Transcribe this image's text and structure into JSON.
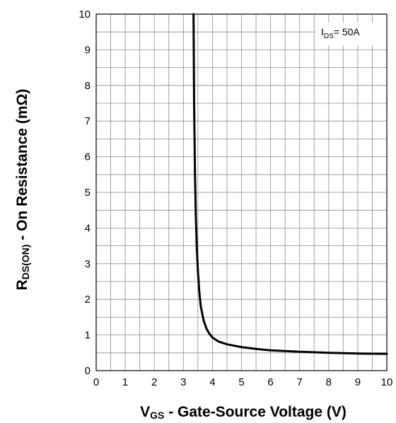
{
  "chart_data": {
    "type": "line",
    "xlabel_main": "V",
    "xlabel_sub": "GS",
    "xlabel_rest": " - Gate-Source Voltage (V)",
    "ylabel_main": "R",
    "ylabel_sub": "DS(ON)",
    "ylabel_rest": " - On Resistance (mΩ)",
    "annotation_main": "I",
    "annotation_sub": "DS",
    "annotation_rest": "= 50A",
    "xlim": [
      0,
      10
    ],
    "ylim": [
      0,
      10
    ],
    "x_ticks": [
      "0",
      "1",
      "2",
      "3",
      "4",
      "5",
      "6",
      "7",
      "8",
      "9",
      "10"
    ],
    "y_ticks": [
      "0",
      "1",
      "2",
      "3",
      "4",
      "5",
      "6",
      "7",
      "8",
      "9",
      "10"
    ],
    "grid": true,
    "series": [
      {
        "color": "#000000",
        "x": [
          3.35,
          3.37,
          3.4,
          3.43,
          3.46,
          3.5,
          3.55,
          3.6,
          3.7,
          3.8,
          3.9,
          4.0,
          4.2,
          4.5,
          5.0,
          5.5,
          6.0,
          7.0,
          8.0,
          9.0,
          10.0
        ],
        "y": [
          10.0,
          7.5,
          5.5,
          4.3,
          3.5,
          2.8,
          2.2,
          1.8,
          1.4,
          1.17,
          1.03,
          0.93,
          0.82,
          0.74,
          0.66,
          0.61,
          0.57,
          0.53,
          0.5,
          0.48,
          0.47
        ]
      }
    ]
  }
}
